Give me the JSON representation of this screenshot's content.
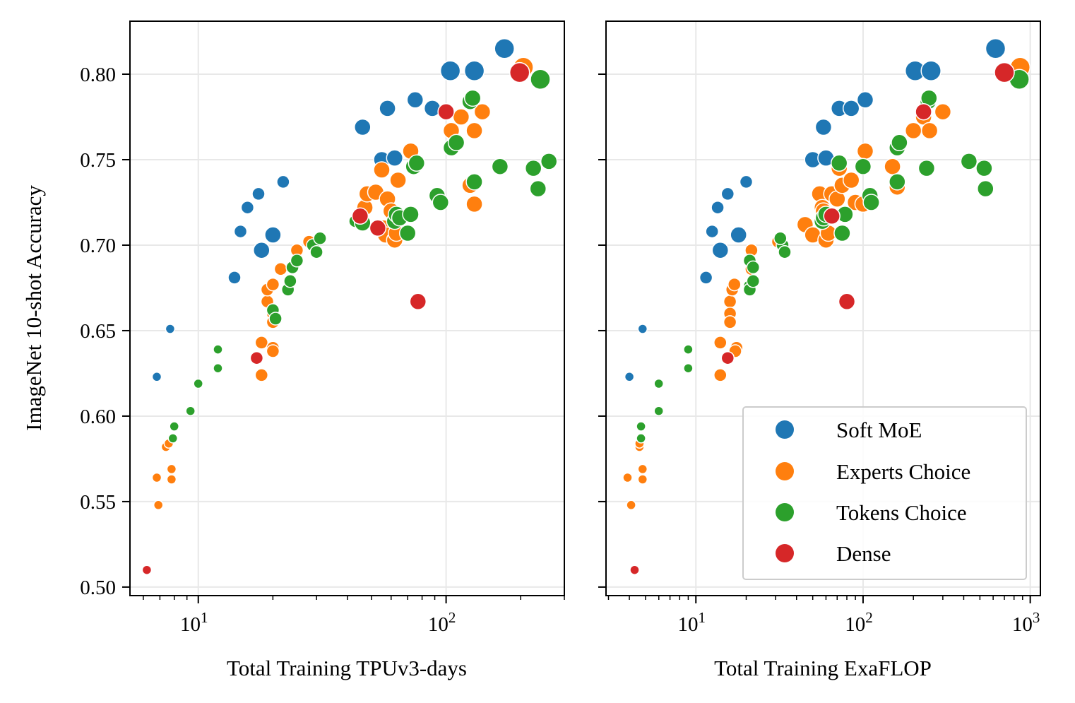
{
  "chart_data": [
    {
      "type": "scatter",
      "xlabel": "Total Training TPUv3-days",
      "ylabel": "ImageNet 10-shot Accuracy",
      "xscale": "log",
      "xlim": [
        5.3,
        300
      ],
      "ylim": [
        0.495,
        0.831
      ],
      "xticks": [
        {
          "value": 10,
          "base": "10",
          "exp": "1"
        },
        {
          "value": 100,
          "base": "10",
          "exp": "2"
        }
      ],
      "yticks": [
        {
          "value": 0.5,
          "label": "0.50"
        },
        {
          "value": 0.55,
          "label": "0.55"
        },
        {
          "value": 0.6,
          "label": "0.60"
        },
        {
          "value": 0.65,
          "label": "0.65"
        },
        {
          "value": 0.7,
          "label": "0.70"
        },
        {
          "value": 0.75,
          "label": "0.75"
        },
        {
          "value": 0.8,
          "label": "0.80"
        }
      ],
      "grid": true,
      "series": [
        {
          "name": "Soft MoE",
          "color": "#1f77b4",
          "points": [
            [
              6.8,
              0.623,
              1
            ],
            [
              7.7,
              0.651,
              1
            ],
            [
              14,
              0.681,
              2
            ],
            [
              14.8,
              0.708,
              2
            ],
            [
              15.8,
              0.722,
              2
            ],
            [
              17.5,
              0.73,
              2
            ],
            [
              22,
              0.737,
              2
            ],
            [
              18,
              0.697,
              3
            ],
            [
              20,
              0.706,
              3
            ],
            [
              46,
              0.769,
              3
            ],
            [
              55,
              0.75,
              3
            ],
            [
              58,
              0.78,
              3
            ],
            [
              62,
              0.751,
              3
            ],
            [
              75,
              0.785,
              3
            ],
            [
              88,
              0.78,
              3
            ],
            [
              104,
              0.802,
              4
            ],
            [
              130,
              0.802,
              4
            ],
            [
              172,
              0.815,
              4
            ]
          ]
        },
        {
          "name": "Experts Choice",
          "color": "#ff7f0e",
          "points": [
            [
              6.9,
              0.548,
              1
            ],
            [
              6.8,
              0.564,
              1
            ],
            [
              7.8,
              0.563,
              1
            ],
            [
              7.8,
              0.569,
              1
            ],
            [
              7.4,
              0.582,
              1
            ],
            [
              7.6,
              0.584,
              1
            ],
            [
              18,
              0.624,
              2
            ],
            [
              18,
              0.643,
              2
            ],
            [
              20,
              0.64,
              2
            ],
            [
              20,
              0.638,
              2
            ],
            [
              19,
              0.667,
              2
            ],
            [
              19,
              0.674,
              2
            ],
            [
              20,
              0.677,
              2
            ],
            [
              20,
              0.66,
              2
            ],
            [
              20,
              0.655,
              2
            ],
            [
              21.5,
              0.686,
              2
            ],
            [
              25,
              0.697,
              2
            ],
            [
              28,
              0.702,
              2
            ],
            [
              47,
              0.722,
              3
            ],
            [
              48,
              0.73,
              3
            ],
            [
              52,
              0.731,
              3
            ],
            [
              55,
              0.744,
              3
            ],
            [
              56,
              0.71,
              3
            ],
            [
              57,
              0.706,
              3
            ],
            [
              58,
              0.727,
              3
            ],
            [
              60,
              0.72,
              3
            ],
            [
              62,
              0.703,
              3
            ],
            [
              63,
              0.707,
              3
            ],
            [
              64,
              0.738,
              3
            ],
            [
              72,
              0.755,
              3
            ],
            [
              95,
              0.725,
              3
            ],
            [
              105,
              0.767,
              3
            ],
            [
              115,
              0.775,
              3
            ],
            [
              125,
              0.735,
              3
            ],
            [
              130,
              0.724,
              3
            ],
            [
              130,
              0.767,
              3
            ],
            [
              140,
              0.778,
              3
            ],
            [
              165,
              0.746,
              3
            ],
            [
              205,
              0.804,
              4
            ]
          ]
        },
        {
          "name": "Tokens Choice",
          "color": "#2ca02c",
          "points": [
            [
              7.9,
              0.587,
              1
            ],
            [
              8,
              0.594,
              1
            ],
            [
              9.3,
              0.603,
              1
            ],
            [
              10,
              0.619,
              1
            ],
            [
              12,
              0.628,
              1
            ],
            [
              12,
              0.639,
              1
            ],
            [
              20,
              0.662,
              2
            ],
            [
              20.5,
              0.657,
              2
            ],
            [
              23,
              0.674,
              2
            ],
            [
              23.5,
              0.679,
              2
            ],
            [
              24,
              0.687,
              2
            ],
            [
              25,
              0.691,
              2
            ],
            [
              29,
              0.7,
              2
            ],
            [
              30,
              0.696,
              2
            ],
            [
              31,
              0.704,
              2
            ],
            [
              43,
              0.714,
              2
            ],
            [
              46,
              0.713,
              3
            ],
            [
              62,
              0.714,
              3
            ],
            [
              63,
              0.718,
              3
            ],
            [
              65,
              0.716,
              3
            ],
            [
              70,
              0.707,
              3
            ],
            [
              72,
              0.718,
              3
            ],
            [
              74,
              0.746,
              3
            ],
            [
              76,
              0.748,
              3
            ],
            [
              92,
              0.729,
              3
            ],
            [
              95,
              0.725,
              3
            ],
            [
              105,
              0.757,
              3
            ],
            [
              110,
              0.76,
              3
            ],
            [
              125,
              0.784,
              3
            ],
            [
              128,
              0.786,
              3
            ],
            [
              130,
              0.737,
              3
            ],
            [
              165,
              0.746,
              3
            ],
            [
              225,
              0.745,
              3
            ],
            [
              235,
              0.733,
              3
            ],
            [
              240,
              0.797,
              4
            ],
            [
              260,
              0.749,
              3
            ]
          ]
        },
        {
          "name": "Dense",
          "color": "#d62728",
          "points": [
            [
              6.2,
              0.51,
              1
            ],
            [
              17.2,
              0.634,
              2
            ],
            [
              45,
              0.717,
              3
            ],
            [
              53,
              0.71,
              3
            ],
            [
              77,
              0.667,
              3
            ],
            [
              100,
              0.778,
              3
            ],
            [
              198,
              0.801,
              4
            ]
          ]
        }
      ]
    },
    {
      "type": "scatter",
      "xlabel": "Total Training ExaFLOP",
      "ylabel": "",
      "xscale": "log",
      "xlim": [
        2.9,
        1150
      ],
      "ylim": [
        0.495,
        0.831
      ],
      "xticks": [
        {
          "value": 10,
          "base": "10",
          "exp": "1"
        },
        {
          "value": 100,
          "base": "10",
          "exp": "2"
        },
        {
          "value": 1000,
          "base": "10",
          "exp": "3"
        }
      ],
      "yticks": [
        {
          "value": 0.5,
          "label": ""
        },
        {
          "value": 0.55,
          "label": ""
        },
        {
          "value": 0.6,
          "label": ""
        },
        {
          "value": 0.65,
          "label": ""
        },
        {
          "value": 0.7,
          "label": ""
        },
        {
          "value": 0.75,
          "label": ""
        },
        {
          "value": 0.8,
          "label": ""
        }
      ],
      "grid": true,
      "legend": {
        "position": "lower-right",
        "entries": [
          "Soft MoE",
          "Experts Choice",
          "Tokens Choice",
          "Dense"
        ]
      },
      "series": [
        {
          "name": "Soft MoE",
          "color": "#1f77b4",
          "points": [
            [
              4,
              0.623,
              1
            ],
            [
              4.8,
              0.651,
              1
            ],
            [
              11.5,
              0.681,
              2
            ],
            [
              12.5,
              0.708,
              2
            ],
            [
              13.5,
              0.722,
              2
            ],
            [
              15.5,
              0.73,
              2
            ],
            [
              20,
              0.737,
              2
            ],
            [
              14,
              0.697,
              3
            ],
            [
              18,
              0.706,
              3
            ],
            [
              50,
              0.75,
              3
            ],
            [
              58,
              0.769,
              3
            ],
            [
              60,
              0.751,
              3
            ],
            [
              72,
              0.78,
              3
            ],
            [
              85,
              0.78,
              3
            ],
            [
              103,
              0.785,
              3
            ],
            [
              205,
              0.802,
              4
            ],
            [
              255,
              0.802,
              4
            ],
            [
              620,
              0.815,
              4
            ]
          ]
        },
        {
          "name": "Experts Choice",
          "color": "#ff7f0e",
          "points": [
            [
              4.1,
              0.548,
              1
            ],
            [
              3.9,
              0.564,
              1
            ],
            [
              4.8,
              0.563,
              1
            ],
            [
              4.8,
              0.569,
              1
            ],
            [
              4.6,
              0.582,
              1
            ],
            [
              4.6,
              0.584,
              1
            ],
            [
              14,
              0.624,
              2
            ],
            [
              14,
              0.643,
              2
            ],
            [
              17.5,
              0.64,
              2
            ],
            [
              17.2,
              0.638,
              2
            ],
            [
              16,
              0.667,
              2
            ],
            [
              16.5,
              0.674,
              2
            ],
            [
              17,
              0.677,
              2
            ],
            [
              16,
              0.66,
              2
            ],
            [
              16,
              0.655,
              2
            ],
            [
              21.5,
              0.686,
              2
            ],
            [
              21.5,
              0.697,
              2
            ],
            [
              31,
              0.702,
              2
            ],
            [
              45,
              0.712,
              3
            ],
            [
              50,
              0.706,
              3
            ],
            [
              55,
              0.73,
              3
            ],
            [
              57,
              0.722,
              3
            ],
            [
              58,
              0.72,
              3
            ],
            [
              60,
              0.703,
              3
            ],
            [
              62,
              0.707,
              3
            ],
            [
              65,
              0.73,
              3
            ],
            [
              70,
              0.727,
              3
            ],
            [
              72,
              0.745,
              3
            ],
            [
              75,
              0.735,
              3
            ],
            [
              85,
              0.738,
              3
            ],
            [
              90,
              0.725,
              3
            ],
            [
              100,
              0.724,
              3
            ],
            [
              103,
              0.755,
              3
            ],
            [
              150,
              0.746,
              3
            ],
            [
              160,
              0.734,
              3
            ],
            [
              200,
              0.767,
              3
            ],
            [
              230,
              0.775,
              3
            ],
            [
              250,
              0.767,
              3
            ],
            [
              300,
              0.778,
              3
            ],
            [
              870,
              0.804,
              4
            ]
          ]
        },
        {
          "name": "Tokens Choice",
          "color": "#2ca02c",
          "points": [
            [
              4.7,
              0.587,
              1
            ],
            [
              4.7,
              0.594,
              1
            ],
            [
              6,
              0.603,
              1
            ],
            [
              6,
              0.619,
              1
            ],
            [
              9,
              0.628,
              1
            ],
            [
              9,
              0.639,
              1
            ],
            [
              21,
              0.676,
              2
            ],
            [
              21,
              0.674,
              2
            ],
            [
              22,
              0.679,
              2
            ],
            [
              21,
              0.691,
              2
            ],
            [
              22,
              0.687,
              2
            ],
            [
              33,
              0.7,
              2
            ],
            [
              34,
              0.696,
              2
            ],
            [
              32,
              0.704,
              2
            ],
            [
              57,
              0.714,
              3
            ],
            [
              58,
              0.716,
              3
            ],
            [
              60,
              0.718,
              3
            ],
            [
              75,
              0.707,
              3
            ],
            [
              78,
              0.718,
              3
            ],
            [
              72,
              0.748,
              3
            ],
            [
              100,
              0.746,
              3
            ],
            [
              110,
              0.729,
              3
            ],
            [
              112,
              0.725,
              3
            ],
            [
              160,
              0.757,
              3
            ],
            [
              165,
              0.76,
              3
            ],
            [
              160,
              0.737,
              3
            ],
            [
              245,
              0.784,
              3
            ],
            [
              248,
              0.786,
              3
            ],
            [
              240,
              0.745,
              3
            ],
            [
              430,
              0.749,
              3
            ],
            [
              530,
              0.745,
              3
            ],
            [
              540,
              0.733,
              3
            ],
            [
              860,
              0.797,
              4
            ]
          ]
        },
        {
          "name": "Dense",
          "color": "#d62728",
          "points": [
            [
              4.3,
              0.51,
              1
            ],
            [
              15.5,
              0.634,
              2
            ],
            [
              65,
              0.717,
              3
            ],
            [
              80,
              0.667,
              3
            ],
            [
              230,
              0.778,
              3
            ],
            [
              700,
              0.801,
              4
            ]
          ]
        }
      ]
    }
  ]
}
